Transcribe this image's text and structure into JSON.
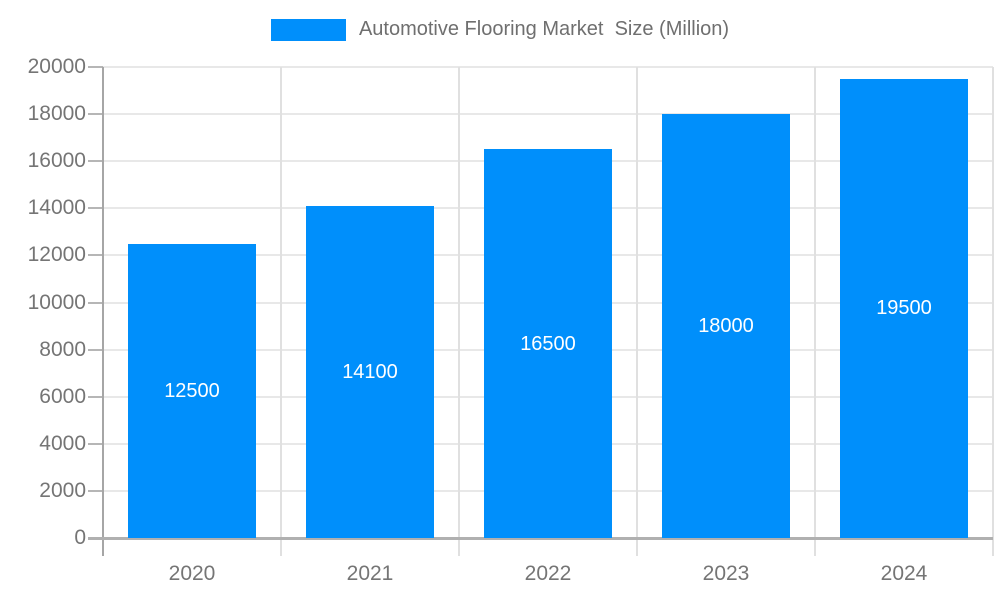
{
  "legend": {
    "label": "Automotive Flooring Market  Size (Million)"
  },
  "colors": {
    "bar": "#008FFB",
    "axis_text": "#757575",
    "grid_h": "#e8e8e8",
    "grid_v": "#e0e0e0",
    "axis_line": "#a6a6a6",
    "baseline": "#b0b0b0",
    "data_label_text": "#ffffff",
    "legend_text": "#6f6f6f"
  },
  "chart_data": {
    "type": "bar",
    "title": "Automotive Flooring Market  Size (Million)",
    "categories": [
      "2020",
      "2021",
      "2022",
      "2023",
      "2024"
    ],
    "series": [
      {
        "name": "Automotive Flooring Market  Size (Million)",
        "values": [
          12500,
          14100,
          16500,
          18000,
          19500
        ]
      }
    ],
    "data_labels": [
      "12500",
      "14100",
      "16500",
      "18000",
      "19500"
    ],
    "xlabel": "",
    "ylabel": "",
    "ylim": [
      0,
      20000
    ],
    "ytick_step": 2000,
    "ytick_labels": [
      "0",
      "2000",
      "4000",
      "6000",
      "8000",
      "10000",
      "12000",
      "14000",
      "16000",
      "18000",
      "20000"
    ],
    "grid": true,
    "legend_position": "top"
  }
}
